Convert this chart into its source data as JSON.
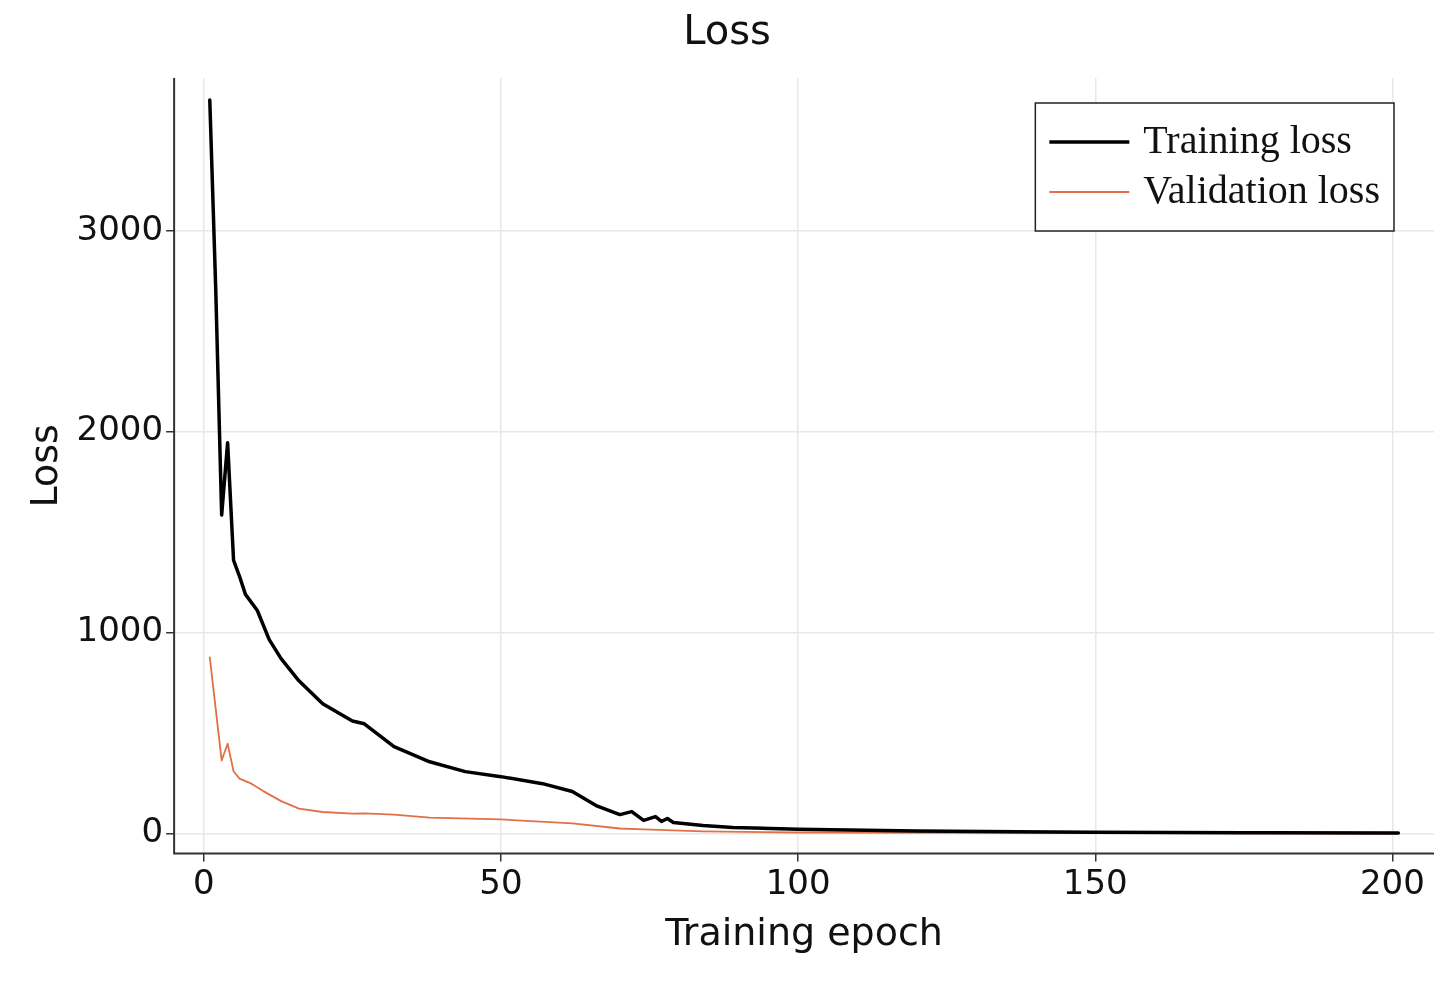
{
  "chart_data": {
    "type": "line",
    "title": "Loss",
    "xlabel": "Training epoch",
    "ylabel": "Loss",
    "xlim": [
      -5,
      207
    ],
    "ylim": [
      -100,
      3760
    ],
    "xticks": [
      0,
      50,
      100,
      150,
      200
    ],
    "yticks": [
      0,
      1000,
      2000,
      3000
    ],
    "grid": true,
    "legend": "top right",
    "marker": "none",
    "line_style": "solid",
    "series": [
      {
        "name": "Training loss",
        "color": "#000000",
        "x": [
          1,
          2,
          3,
          4,
          5,
          6,
          7,
          9,
          11,
          13,
          16,
          20,
          25,
          27,
          32,
          38,
          44,
          50,
          57,
          62,
          66,
          70,
          72,
          74,
          76,
          77,
          78,
          79,
          84,
          89,
          100,
          120,
          150,
          175,
          201
        ],
        "values": [
          3650,
          2710,
          1585,
          1945,
          1360,
          1280,
          1190,
          1110,
          965,
          870,
          760,
          646,
          560,
          546,
          432,
          357,
          308,
          283,
          248,
          209,
          139,
          94,
          109,
          65,
          84,
          60,
          75,
          55,
          40,
          30,
          21,
          12,
          6,
          4,
          2
        ]
      },
      {
        "name": "Validation loss",
        "color": "#e26f46",
        "x": [
          1,
          3,
          4,
          5,
          6,
          8,
          10,
          13,
          16,
          20,
          25,
          27,
          32,
          38,
          50,
          62,
          70,
          74,
          84,
          100,
          201
        ],
        "values": [
          877,
          363,
          447,
          310,
          273,
          248,
          211,
          161,
          124,
          107,
          99,
          100,
          94,
          79,
          70,
          50,
          25,
          21,
          11,
          5,
          0
        ]
      }
    ]
  }
}
